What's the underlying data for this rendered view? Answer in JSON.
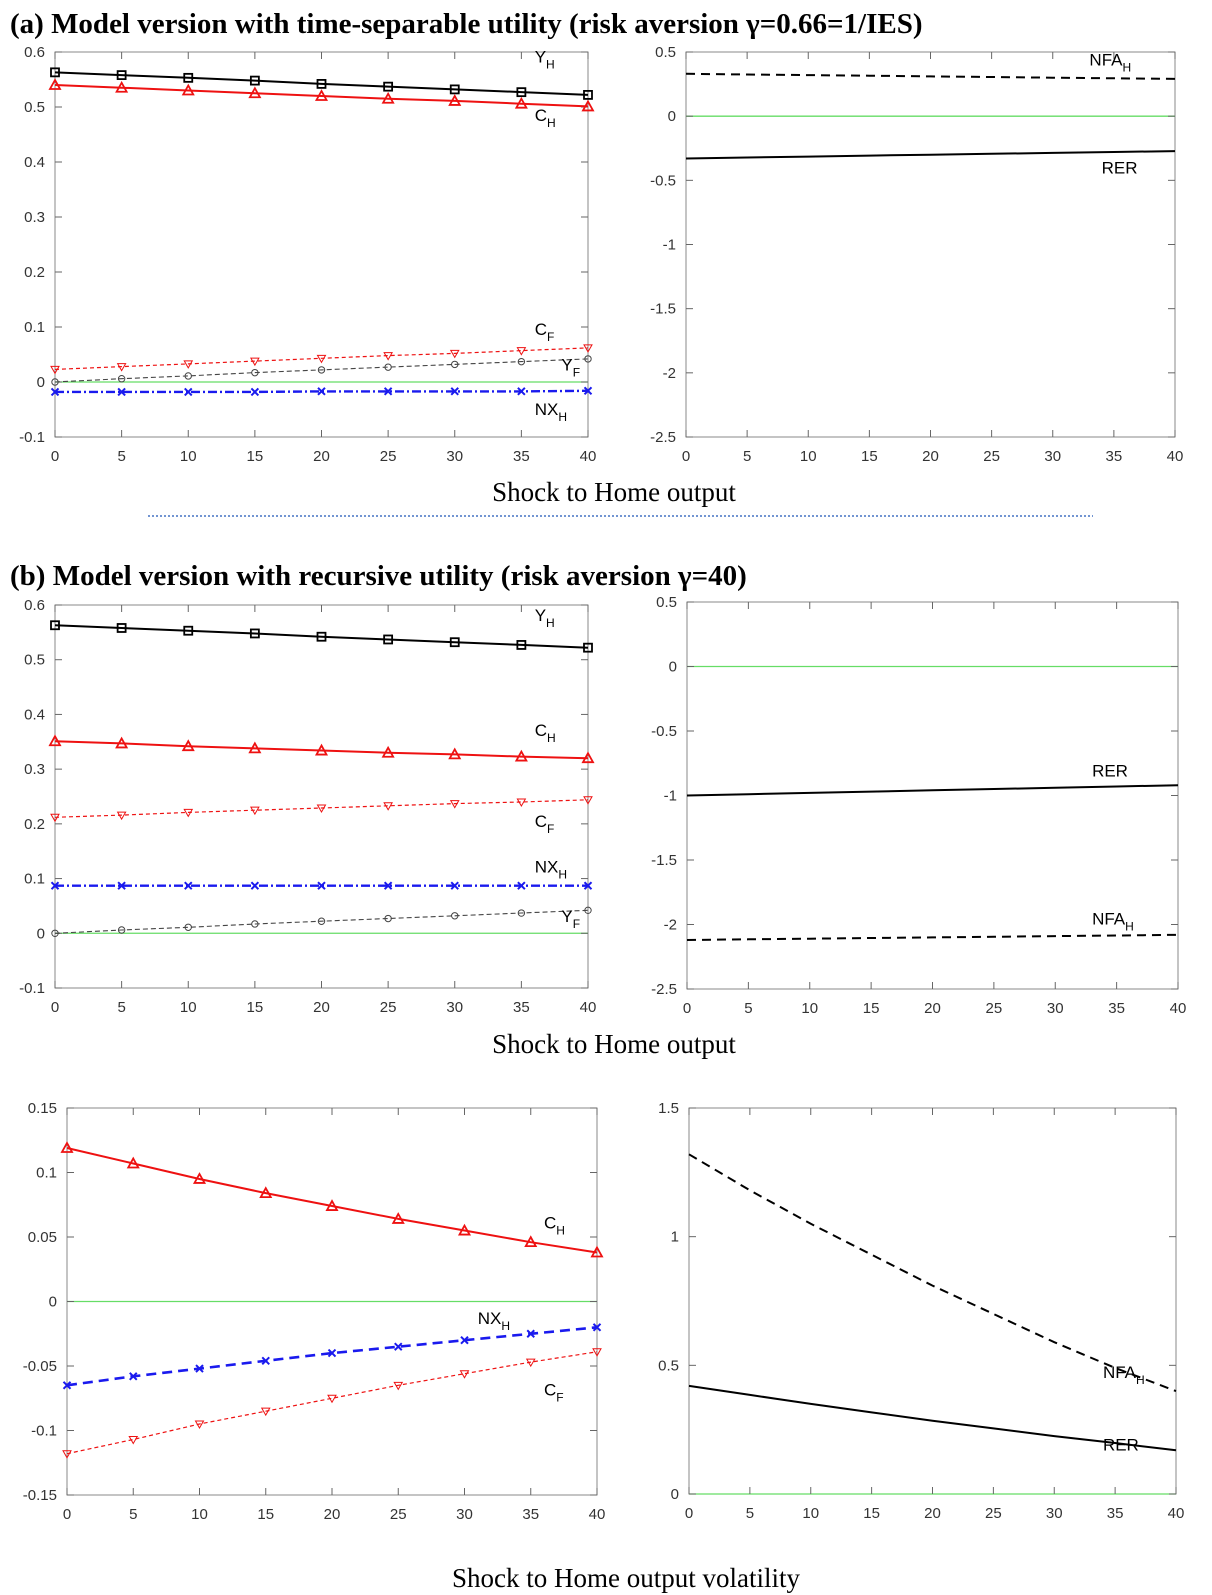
{
  "figure": {
    "panel_a_title": "(a) Model version with time-separable utility (risk aversion γ=0.66=1/IES)",
    "panel_b_title": "(b) Model version with recursive utility (risk aversion γ=40)",
    "caption_row1": "Shock to Home output",
    "caption_row2": "Shock to Home output",
    "caption_row3": "Shock to Home output volatility"
  },
  "colors": {
    "black": "#000000",
    "red": "#ee1111",
    "blue": "#1a1aee",
    "gray_dashed": "#444444",
    "zero_line": "#66dd66",
    "separator": "#4472c4"
  },
  "chart_data": [
    {
      "type": "line",
      "panel": "a-left",
      "x": [
        0,
        5,
        10,
        15,
        20,
        25,
        30,
        35,
        40
      ],
      "ylim": [
        -0.1,
        0.6
      ],
      "yticks": [
        -0.1,
        0,
        0.1,
        0.2,
        0.3,
        0.4,
        0.5,
        0.6
      ],
      "xticks": [
        0,
        5,
        10,
        15,
        20,
        25,
        30,
        35,
        40
      ],
      "series": [
        {
          "name": "Y",
          "sub": "H",
          "style": "solid",
          "color": "black",
          "marker": "square",
          "values": [
            0.563,
            0.558,
            0.553,
            0.548,
            0.542,
            0.537,
            0.532,
            0.527,
            0.522
          ]
        },
        {
          "name": "C",
          "sub": "H",
          "style": "solid",
          "color": "red",
          "marker": "triangle",
          "values": [
            0.54,
            0.535,
            0.53,
            0.525,
            0.52,
            0.515,
            0.511,
            0.506,
            0.501
          ]
        },
        {
          "name": "C",
          "sub": "F",
          "style": "dotted",
          "color": "red",
          "marker": "tri-down",
          "values": [
            0.023,
            0.028,
            0.033,
            0.038,
            0.043,
            0.048,
            0.052,
            0.057,
            0.062
          ]
        },
        {
          "name": "Y",
          "sub": "F",
          "style": "dashed-thin",
          "color": "gray",
          "marker": "circle",
          "values": [
            0.0,
            0.006,
            0.011,
            0.017,
            0.022,
            0.027,
            0.032,
            0.037,
            0.042
          ]
        },
        {
          "name": "NX",
          "sub": "H",
          "style": "dashdot",
          "color": "blue",
          "marker": "x",
          "values": [
            -0.018,
            -0.018,
            -0.018,
            -0.018,
            -0.017,
            -0.017,
            -0.017,
            -0.017,
            -0.016
          ]
        }
      ]
    },
    {
      "type": "line",
      "panel": "a-right",
      "x": [
        0,
        5,
        10,
        15,
        20,
        25,
        30,
        35,
        40
      ],
      "ylim": [
        -2.5,
        0.5
      ],
      "yticks": [
        -2.5,
        -2,
        -1.5,
        -1,
        -0.5,
        0,
        0.5
      ],
      "xticks": [
        0,
        5,
        10,
        15,
        20,
        25,
        30,
        35,
        40
      ],
      "series": [
        {
          "name": "NFA",
          "sub": "H",
          "style": "dashed",
          "color": "black",
          "values": [
            0.33,
            0.325,
            0.32,
            0.315,
            0.31,
            0.305,
            0.3,
            0.295,
            0.29
          ]
        },
        {
          "name": "RER",
          "sub": "",
          "style": "solid",
          "color": "black",
          "values": [
            -0.33,
            -0.322,
            -0.315,
            -0.307,
            -0.3,
            -0.293,
            -0.286,
            -0.279,
            -0.272
          ]
        }
      ]
    },
    {
      "type": "line",
      "panel": "b-left",
      "x": [
        0,
        5,
        10,
        15,
        20,
        25,
        30,
        35,
        40
      ],
      "ylim": [
        -0.1,
        0.6
      ],
      "yticks": [
        -0.1,
        0,
        0.1,
        0.2,
        0.3,
        0.4,
        0.5,
        0.6
      ],
      "xticks": [
        0,
        5,
        10,
        15,
        20,
        25,
        30,
        35,
        40
      ],
      "series": [
        {
          "name": "Y",
          "sub": "H",
          "style": "solid",
          "color": "black",
          "marker": "square",
          "values": [
            0.563,
            0.558,
            0.553,
            0.548,
            0.542,
            0.537,
            0.532,
            0.527,
            0.522
          ]
        },
        {
          "name": "C",
          "sub": "H",
          "style": "solid",
          "color": "red",
          "marker": "triangle",
          "values": [
            0.351,
            0.347,
            0.342,
            0.338,
            0.334,
            0.33,
            0.327,
            0.323,
            0.32
          ]
        },
        {
          "name": "C",
          "sub": "F",
          "style": "dotted",
          "color": "red",
          "marker": "tri-down",
          "values": [
            0.212,
            0.216,
            0.221,
            0.225,
            0.229,
            0.233,
            0.237,
            0.24,
            0.244
          ]
        },
        {
          "name": "NX",
          "sub": "H",
          "style": "dashdot",
          "color": "blue",
          "marker": "x",
          "values": [
            0.087,
            0.087,
            0.087,
            0.087,
            0.087,
            0.087,
            0.087,
            0.087,
            0.087
          ]
        },
        {
          "name": "Y",
          "sub": "F",
          "style": "dashed-thin",
          "color": "gray",
          "marker": "circle",
          "values": [
            0.0,
            0.006,
            0.011,
            0.017,
            0.022,
            0.027,
            0.032,
            0.037,
            0.042
          ]
        }
      ]
    },
    {
      "type": "line",
      "panel": "b-right",
      "x": [
        0,
        5,
        10,
        15,
        20,
        25,
        30,
        35,
        40
      ],
      "ylim": [
        -2.5,
        0.5
      ],
      "yticks": [
        -2.5,
        -2,
        -1.5,
        -1,
        -0.5,
        0,
        0.5
      ],
      "xticks": [
        0,
        5,
        10,
        15,
        20,
        25,
        30,
        35,
        40
      ],
      "series": [
        {
          "name": "RER",
          "sub": "",
          "style": "solid",
          "color": "black",
          "values": [
            -1.0,
            -0.99,
            -0.98,
            -0.97,
            -0.96,
            -0.95,
            -0.94,
            -0.93,
            -0.92
          ]
        },
        {
          "name": "NFA",
          "sub": "H",
          "style": "dashed",
          "color": "black",
          "values": [
            -2.12,
            -2.115,
            -2.11,
            -2.105,
            -2.1,
            -2.095,
            -2.09,
            -2.085,
            -2.08
          ]
        }
      ]
    },
    {
      "type": "line",
      "panel": "c-left",
      "x": [
        0,
        5,
        10,
        15,
        20,
        25,
        30,
        35,
        40
      ],
      "ylim": [
        -0.15,
        0.15
      ],
      "yticks": [
        -0.15,
        -0.1,
        -0.05,
        0,
        0.05,
        0.1,
        0.15
      ],
      "xticks": [
        0,
        5,
        10,
        15,
        20,
        25,
        30,
        35,
        40
      ],
      "series": [
        {
          "name": "C",
          "sub": "H",
          "style": "solid",
          "color": "red",
          "marker": "triangle",
          "values": [
            0.119,
            0.107,
            0.095,
            0.084,
            0.074,
            0.064,
            0.055,
            0.046,
            0.038
          ]
        },
        {
          "name": "NX",
          "sub": "H",
          "style": "dashed-thick",
          "color": "blue",
          "marker": "x",
          "values": [
            -0.065,
            -0.058,
            -0.052,
            -0.046,
            -0.04,
            -0.035,
            -0.03,
            -0.025,
            -0.02
          ]
        },
        {
          "name": "C",
          "sub": "F",
          "style": "dotted",
          "color": "red",
          "marker": "tri-down",
          "values": [
            -0.118,
            -0.107,
            -0.095,
            -0.085,
            -0.075,
            -0.065,
            -0.056,
            -0.047,
            -0.039
          ]
        }
      ]
    },
    {
      "type": "line",
      "panel": "c-right",
      "x": [
        0,
        5,
        10,
        15,
        20,
        25,
        30,
        35,
        40
      ],
      "ylim": [
        0,
        1.5
      ],
      "yticks": [
        0,
        0.5,
        1,
        1.5
      ],
      "xticks": [
        0,
        5,
        10,
        15,
        20,
        25,
        30,
        35,
        40
      ],
      "series": [
        {
          "name": "NFA",
          "sub": "H",
          "style": "dashed",
          "color": "black",
          "values": [
            1.32,
            1.18,
            1.05,
            0.93,
            0.81,
            0.7,
            0.59,
            0.49,
            0.4
          ]
        },
        {
          "name": "RER",
          "sub": "",
          "style": "solid",
          "color": "black",
          "values": [
            0.42,
            0.385,
            0.35,
            0.317,
            0.285,
            0.255,
            0.225,
            0.198,
            0.17
          ]
        }
      ]
    }
  ]
}
